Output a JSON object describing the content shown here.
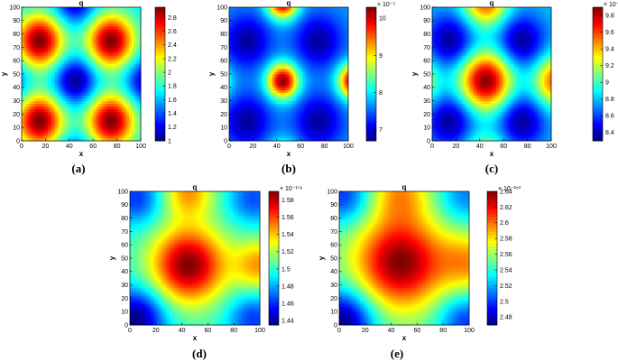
{
  "chart_data": [
    {
      "type": "heatmap",
      "label": "(a)",
      "title": "q",
      "xlabel": "x",
      "ylabel": "y",
      "xlim": [
        0,
        100
      ],
      "ylim": [
        0,
        100
      ],
      "xticks": [
        "0",
        "20",
        "40",
        "60",
        "80",
        "100"
      ],
      "yticks": [
        "0",
        "10",
        "20",
        "30",
        "40",
        "50",
        "60",
        "70",
        "80",
        "90",
        "100"
      ],
      "colorbar": {
        "min": 1.0,
        "max": 2.95,
        "exponent": "",
        "ticks": [
          {
            "value": 1.2,
            "label": "1.2"
          },
          {
            "value": 1.4,
            "label": "1.4"
          },
          {
            "value": 1.6,
            "label": "1.6"
          },
          {
            "value": 1.8,
            "label": "1.8"
          },
          {
            "value": 2.0,
            "label": "2"
          },
          {
            "value": 2.2,
            "label": "2.2"
          },
          {
            "value": 2.4,
            "label": "2.4"
          },
          {
            "value": 2.6,
            "label": "2.6"
          },
          {
            "value": 2.8,
            "label": "2.8"
          },
          {
            "value": 1.0,
            "label": "1"
          }
        ]
      },
      "field": {
        "base": 0.35,
        "peaks": [
          {
            "x": 15,
            "y": 15,
            "a": 0.65,
            "s": 14
          },
          {
            "x": 75,
            "y": 15,
            "a": 0.65,
            "s": 14
          },
          {
            "x": 15,
            "y": 75,
            "a": 0.65,
            "s": 14
          },
          {
            "x": 75,
            "y": 75,
            "a": 0.65,
            "s": 14
          },
          {
            "x": 45,
            "y": 45,
            "a": -0.35,
            "s": 12
          },
          {
            "x": 45,
            "y": 105,
            "a": -0.3,
            "s": 12
          },
          {
            "x": -15,
            "y": 45,
            "a": -0.3,
            "s": 12
          },
          {
            "x": 105,
            "y": 45,
            "a": -0.3,
            "s": 12
          },
          {
            "x": 45,
            "y": -15,
            "a": -0.3,
            "s": 12
          }
        ]
      }
    },
    {
      "type": "heatmap",
      "label": "(b)",
      "title": "q",
      "xlabel": "x",
      "ylabel": "y",
      "xlim": [
        0,
        100
      ],
      "ylim": [
        0,
        100
      ],
      "xticks": [
        "0",
        "20",
        "40",
        "60",
        "80",
        "100"
      ],
      "yticks": [
        "0",
        "10",
        "20",
        "30",
        "40",
        "50",
        "60",
        "70",
        "80",
        "90",
        "100"
      ],
      "colorbar": {
        "min": 6.7,
        "max": 10.3,
        "exponent": "× 10⁻⁵",
        "ticks": [
          {
            "value": 7,
            "label": "7"
          },
          {
            "value": 8,
            "label": "8"
          },
          {
            "value": 9,
            "label": "9"
          },
          {
            "value": 10,
            "label": "10"
          }
        ]
      },
      "field": {
        "base": 0.28,
        "peaks": [
          {
            "x": 45,
            "y": 45,
            "a": 0.72,
            "s": 9
          },
          {
            "x": 45,
            "y": 105,
            "a": 0.72,
            "s": 9
          },
          {
            "x": 105,
            "y": 45,
            "a": 0.72,
            "s": 9
          },
          {
            "x": -15,
            "y": 45,
            "a": 0.55,
            "s": 9
          },
          {
            "x": 45,
            "y": -15,
            "a": 0.55,
            "s": 9
          },
          {
            "x": 15,
            "y": 15,
            "a": -0.25,
            "s": 14
          },
          {
            "x": 75,
            "y": 15,
            "a": -0.25,
            "s": 14
          },
          {
            "x": 15,
            "y": 75,
            "a": -0.25,
            "s": 14
          },
          {
            "x": 75,
            "y": 75,
            "a": -0.25,
            "s": 14
          }
        ]
      }
    },
    {
      "type": "heatmap",
      "label": "(c)",
      "title": "q",
      "xlabel": "x",
      "ylabel": "y",
      "xlim": [
        0,
        100
      ],
      "ylim": [
        0,
        100
      ],
      "xticks": [
        "0",
        "20",
        "40",
        "60",
        "80",
        "100"
      ],
      "yticks": [
        "0",
        "10",
        "20",
        "30",
        "40",
        "50",
        "60",
        "70",
        "80",
        "90",
        "100"
      ],
      "colorbar": {
        "min": 8.3,
        "max": 9.9,
        "exponent": "× 10⁻⁶⁰",
        "ticks": [
          {
            "value": 8.4,
            "label": "8.4"
          },
          {
            "value": 8.6,
            "label": "8.6"
          },
          {
            "value": 8.8,
            "label": "8.8"
          },
          {
            "value": 9.0,
            "label": "9"
          },
          {
            "value": 9.2,
            "label": "9.2"
          },
          {
            "value": 9.4,
            "label": "9.4"
          },
          {
            "value": 9.6,
            "label": "9.6"
          },
          {
            "value": 9.8,
            "label": "9.8"
          }
        ]
      },
      "field": {
        "base": 0.32,
        "peaks": [
          {
            "x": 45,
            "y": 45,
            "a": 0.68,
            "s": 15
          },
          {
            "x": 45,
            "y": 105,
            "a": 0.5,
            "s": 13
          },
          {
            "x": 105,
            "y": 45,
            "a": 0.5,
            "s": 13
          },
          {
            "x": -15,
            "y": 45,
            "a": 0.35,
            "s": 13
          },
          {
            "x": 45,
            "y": -15,
            "a": 0.35,
            "s": 13
          },
          {
            "x": 15,
            "y": 15,
            "a": -0.3,
            "s": 14
          },
          {
            "x": 75,
            "y": 15,
            "a": -0.3,
            "s": 14
          },
          {
            "x": 15,
            "y": 75,
            "a": -0.3,
            "s": 14
          },
          {
            "x": 75,
            "y": 75,
            "a": -0.3,
            "s": 14
          }
        ]
      }
    },
    {
      "type": "heatmap",
      "label": "(d)",
      "title": "q",
      "xlabel": "x",
      "ylabel": "y",
      "xlim": [
        0,
        100
      ],
      "ylim": [
        0,
        100
      ],
      "xticks": [
        "0",
        "20",
        "40",
        "60",
        "80",
        "100"
      ],
      "yticks": [
        "0",
        "10",
        "20",
        "30",
        "40",
        "50",
        "60",
        "70",
        "80",
        "90",
        "100"
      ],
      "colorbar": {
        "min": 1.435,
        "max": 1.59,
        "exponent": "× 10⁻¹⁷⁶",
        "ticks": [
          {
            "value": 1.44,
            "label": "1.44"
          },
          {
            "value": 1.46,
            "label": "1.46"
          },
          {
            "value": 1.48,
            "label": "1.48"
          },
          {
            "value": 1.5,
            "label": "1.5"
          },
          {
            "value": 1.52,
            "label": "1.52"
          },
          {
            "value": 1.54,
            "label": "1.54"
          },
          {
            "value": 1.56,
            "label": "1.56"
          },
          {
            "value": 1.58,
            "label": "1.58"
          }
        ]
      },
      "field": {
        "base": 0.42,
        "peaks": [
          {
            "x": 45,
            "y": 45,
            "a": 0.58,
            "s": 20
          },
          {
            "x": 45,
            "y": 100,
            "a": 0.3,
            "s": 14
          },
          {
            "x": 100,
            "y": 45,
            "a": 0.3,
            "s": 14
          },
          {
            "x": 5,
            "y": 5,
            "a": -0.42,
            "s": 16
          },
          {
            "x": 95,
            "y": 5,
            "a": -0.25,
            "s": 14
          },
          {
            "x": 5,
            "y": 95,
            "a": -0.25,
            "s": 14
          },
          {
            "x": 95,
            "y": 95,
            "a": -0.22,
            "s": 14
          }
        ]
      }
    },
    {
      "type": "heatmap",
      "label": "(e)",
      "title": "q",
      "xlabel": "x",
      "ylabel": "y",
      "xlim": [
        0,
        100
      ],
      "ylim": [
        0,
        100
      ],
      "xticks": [
        "0",
        "20",
        "40",
        "60",
        "80",
        "100"
      ],
      "yticks": [
        "0",
        "10",
        "20",
        "30",
        "40",
        "50",
        "60",
        "70",
        "80",
        "90",
        "100"
      ],
      "colorbar": {
        "min": 2.47,
        "max": 2.64,
        "exponent": "× 10⁻²⁶³",
        "ticks": [
          {
            "value": 2.48,
            "label": "2.48"
          },
          {
            "value": 2.5,
            "label": "2.5"
          },
          {
            "value": 2.52,
            "label": "2.52"
          },
          {
            "value": 2.54,
            "label": "2.54"
          },
          {
            "value": 2.56,
            "label": "2.56"
          },
          {
            "value": 2.58,
            "label": "2.58"
          },
          {
            "value": 2.6,
            "label": "2.6"
          },
          {
            "value": 2.62,
            "label": "2.62"
          },
          {
            "value": 2.64,
            "label": "2.64"
          }
        ]
      },
      "field": {
        "base": 0.45,
        "peaks": [
          {
            "x": 47,
            "y": 47,
            "a": 0.55,
            "s": 24
          },
          {
            "x": 47,
            "y": 100,
            "a": 0.25,
            "s": 16
          },
          {
            "x": 100,
            "y": 47,
            "a": 0.25,
            "s": 16
          },
          {
            "x": 3,
            "y": 3,
            "a": -0.45,
            "s": 17
          },
          {
            "x": 97,
            "y": 3,
            "a": -0.28,
            "s": 15
          },
          {
            "x": 3,
            "y": 97,
            "a": -0.28,
            "s": 15
          },
          {
            "x": 97,
            "y": 97,
            "a": -0.2,
            "s": 15
          }
        ]
      }
    }
  ]
}
